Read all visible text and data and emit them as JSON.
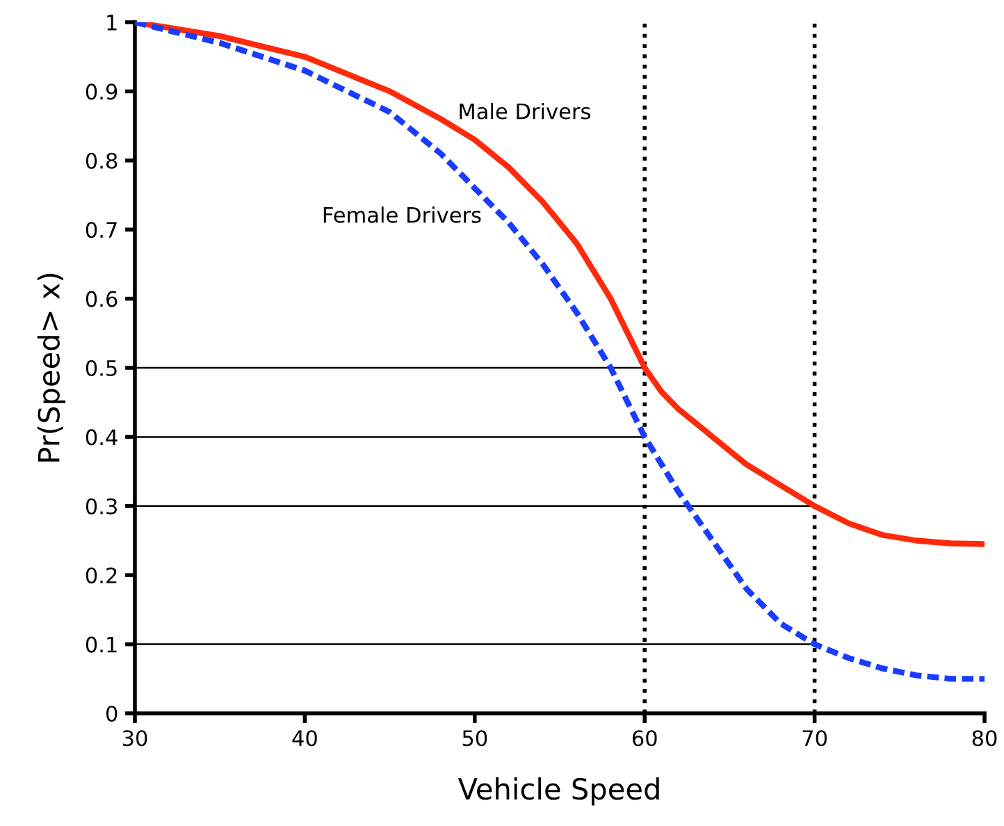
{
  "chart_data": {
    "type": "line",
    "xlabel": "Vehicle Speed",
    "ylabel": "Pr(Speed> x)",
    "xlim": [
      30,
      80
    ],
    "xticks": [
      30,
      40,
      50,
      60,
      70,
      80
    ],
    "ylim": [
      0,
      1
    ],
    "yticks": [
      0,
      0.1,
      0.2,
      0.3,
      0.4,
      0.5,
      0.6,
      0.7,
      0.8,
      0.9,
      1
    ],
    "grid": false,
    "legend": false,
    "marker": "none",
    "series": [
      {
        "name": "Male Drivers",
        "color": "#ff2a0a",
        "line_style": "solid",
        "x": [
          30,
          35,
          40,
          45,
          48,
          50,
          52,
          54,
          56,
          57,
          58,
          59,
          60,
          61,
          62,
          64,
          66,
          68,
          70,
          72,
          74,
          76,
          78,
          80
        ],
        "values": [
          1.0,
          0.98,
          0.95,
          0.9,
          0.86,
          0.83,
          0.79,
          0.74,
          0.68,
          0.64,
          0.6,
          0.55,
          0.5,
          0.465,
          0.44,
          0.4,
          0.36,
          0.33,
          0.3,
          0.275,
          0.258,
          0.25,
          0.246,
          0.245
        ]
      },
      {
        "name": "Female Drivers",
        "color": "#1a3cff",
        "line_style": "dashed",
        "x": [
          30,
          35,
          40,
          45,
          48,
          50,
          52,
          54,
          56,
          58,
          60,
          62,
          64,
          66,
          68,
          70,
          72,
          74,
          76,
          78,
          80
        ],
        "values": [
          1.0,
          0.97,
          0.93,
          0.87,
          0.81,
          0.76,
          0.71,
          0.65,
          0.58,
          0.5,
          0.4,
          0.32,
          0.25,
          0.18,
          0.13,
          0.1,
          0.08,
          0.065,
          0.055,
          0.05,
          0.05
        ]
      },
      {
        "color": "#000000",
        "line_style": "solid",
        "x": [
          30,
          60
        ],
        "values": [
          0.5,
          0.5
        ]
      },
      {
        "color": "#000000",
        "line_style": "solid",
        "x": [
          30,
          60
        ],
        "values": [
          0.4,
          0.4
        ]
      },
      {
        "color": "#000000",
        "line_style": "solid",
        "x": [
          30,
          70
        ],
        "values": [
          0.3,
          0.3
        ]
      },
      {
        "color": "#000000",
        "line_style": "solid",
        "x": [
          30,
          70
        ],
        "values": [
          0.1,
          0.1
        ]
      }
    ],
    "ref_lines": [
      {
        "axis": "x",
        "value": 60,
        "color": "#000000",
        "line_style": "dotted"
      },
      {
        "axis": "x",
        "value": 70,
        "color": "#000000",
        "line_style": "dotted"
      }
    ]
  }
}
